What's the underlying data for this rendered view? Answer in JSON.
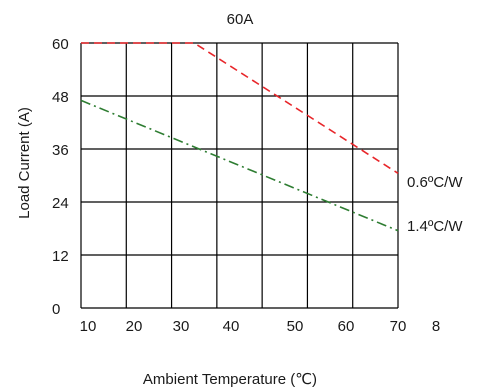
{
  "chart_data": {
    "type": "line",
    "title": "60A",
    "xlabel": "Ambient Temperature (℃)",
    "ylabel": "Load Current (A)",
    "x_ticks": [
      "10",
      "20",
      "30",
      "40",
      "50",
      "60",
      "70",
      "8"
    ],
    "y_ticks": [
      "0",
      "12",
      "24",
      "36",
      "48",
      "60"
    ],
    "xlim": [
      10,
      80
    ],
    "ylim": [
      0,
      60
    ],
    "grid": true,
    "series": [
      {
        "name": "0.6ºC/W",
        "color": "#e8262a",
        "dash": "dashed",
        "points": [
          [
            10,
            60
          ],
          [
            35,
            60
          ],
          [
            80,
            30.5
          ]
        ]
      },
      {
        "name": "1.4ºC/W",
        "color": "#2e7d32",
        "dash": "dash-dot",
        "points": [
          [
            10,
            47
          ],
          [
            80,
            17.5
          ]
        ]
      }
    ]
  }
}
